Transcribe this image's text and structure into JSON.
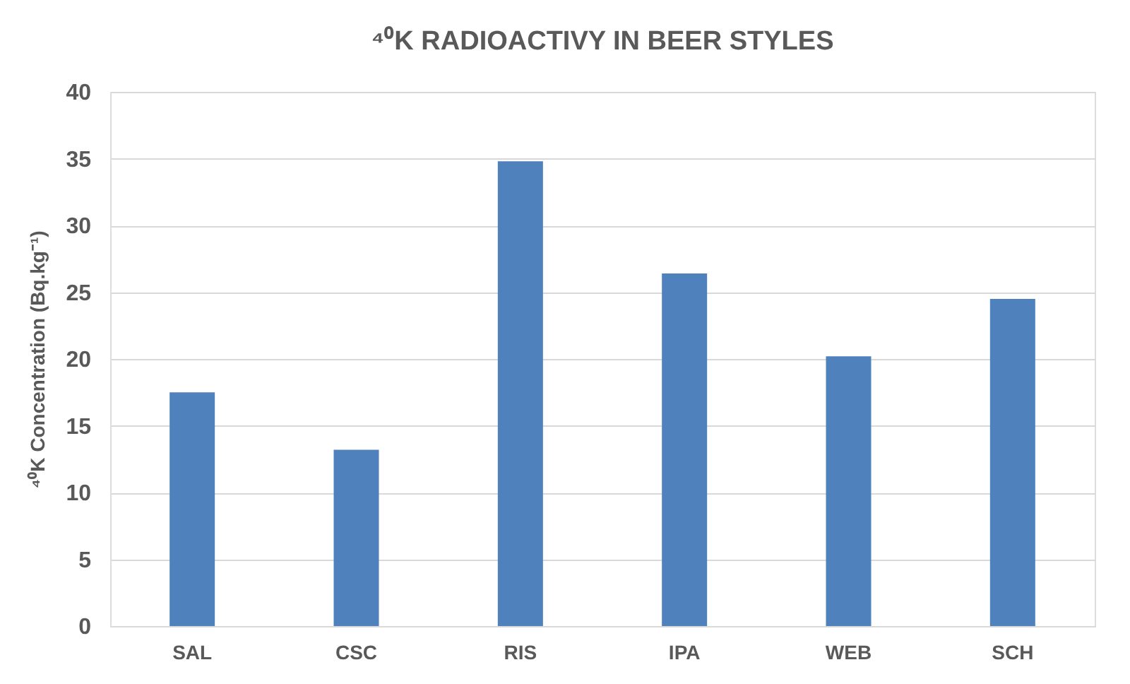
{
  "chart_data": {
    "type": "bar",
    "title": "⁴⁰K RADIOACTIVY IN BEER STYLES",
    "ylabel": "⁴⁰K Concentration (Bq.kg⁻¹)",
    "categories": [
      "SAL",
      "CSC",
      "RIS",
      "IPA",
      "WEB",
      "SCH"
    ],
    "values": [
      17.5,
      13.2,
      34.8,
      26.4,
      20.2,
      24.5
    ],
    "color": "#4f81bd",
    "ylim": [
      0,
      40
    ],
    "yticks": [
      0,
      5,
      10,
      15,
      20,
      25,
      30,
      35,
      40
    ],
    "grid": "y"
  }
}
